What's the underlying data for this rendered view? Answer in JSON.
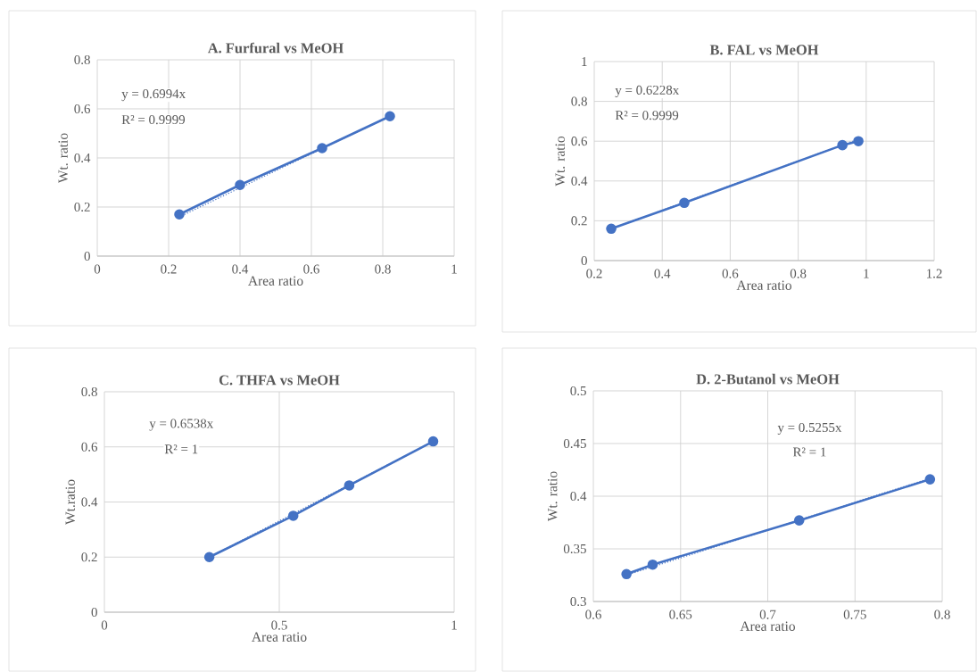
{
  "chart_data": [
    {
      "type": "line",
      "title": "A. Furfural vs MeOH",
      "xlabel": "Area ratio",
      "ylabel": "Wt. ratio",
      "annotations": [
        "y = 0.6994x",
        "R² = 0.9999"
      ],
      "xlim": [
        0,
        1
      ],
      "ylim": [
        0,
        0.8
      ],
      "xticks": [
        0,
        0.2,
        0.4,
        0.6,
        0.8,
        1
      ],
      "yticks": [
        0,
        0.2,
        0.4,
        0.6,
        0.8
      ],
      "grid": true,
      "marker": "circle",
      "series": [
        {
          "color": "#4472c4",
          "x": [
            0.23,
            0.4,
            0.63,
            0.82
          ],
          "values": [
            0.17,
            0.29,
            0.44,
            0.57
          ]
        },
        {
          "color": "#4472c4",
          "x": [
            0.23,
            0.82
          ],
          "values": [
            0.16,
            0.57
          ],
          "line_style": "dotted",
          "marker": "none"
        }
      ]
    },
    {
      "type": "line",
      "title": "B. FAL vs MeOH",
      "xlabel": "Area ratio",
      "ylabel": "Wt. ratio",
      "annotations": [
        "y = 0.6228x",
        "R² = 0.9999"
      ],
      "xlim": [
        0.2,
        1.2
      ],
      "ylim": [
        0,
        1
      ],
      "xticks": [
        0.2,
        0.4,
        0.6,
        0.8,
        1,
        1.2
      ],
      "yticks": [
        0,
        0.2,
        0.4,
        0.6,
        0.8,
        1
      ],
      "grid": true,
      "marker": "circle",
      "series": [
        {
          "color": "#4472c4",
          "x": [
            0.25,
            0.465,
            0.93,
            0.977
          ],
          "values": [
            0.16,
            0.29,
            0.58,
            0.6
          ]
        },
        {
          "color": "#4472c4",
          "x": [
            0.25,
            0.977
          ],
          "values": [
            0.16,
            0.61
          ],
          "line_style": "dotted",
          "marker": "none"
        }
      ]
    },
    {
      "type": "line",
      "title": "C. THFA vs MeOH",
      "xlabel": "Area ratio",
      "ylabel": "Wt.ratio",
      "annotations": [
        "y = 0.6538x",
        "R² = 1"
      ],
      "xlim": [
        0,
        1
      ],
      "ylim": [
        0,
        0.8
      ],
      "xticks": [
        0,
        0.5,
        1
      ],
      "yticks": [
        0,
        0.2,
        0.4,
        0.6,
        0.8
      ],
      "grid": true,
      "marker": "circle",
      "series": [
        {
          "color": "#4472c4",
          "x": [
            0.3,
            0.54,
            0.7,
            0.94
          ],
          "values": [
            0.2,
            0.35,
            0.46,
            0.62
          ]
        },
        {
          "color": "#4472c4",
          "x": [
            0.3,
            0.94
          ],
          "values": [
            0.2,
            0.62
          ],
          "line_style": "dotted",
          "marker": "none"
        }
      ]
    },
    {
      "type": "line",
      "title": "D. 2-Butanol vs MeOH",
      "xlabel": "Area ratio",
      "ylabel": "Wt. ratio",
      "annotations": [
        "y = 0.5255x",
        "R² = 1"
      ],
      "xlim": [
        0.6,
        0.8
      ],
      "ylim": [
        0.3,
        0.5
      ],
      "xticks": [
        0.6,
        0.65,
        0.7,
        0.75,
        0.8
      ],
      "yticks": [
        0.3,
        0.35,
        0.4,
        0.45,
        0.5
      ],
      "grid": true,
      "marker": "circle",
      "series": [
        {
          "color": "#4472c4",
          "x": [
            0.619,
            0.634,
            0.718,
            0.793
          ],
          "values": [
            0.326,
            0.335,
            0.377,
            0.416
          ]
        },
        {
          "color": "#4472c4",
          "x": [
            0.619,
            0.793
          ],
          "values": [
            0.325,
            0.417
          ],
          "line_style": "dotted",
          "marker": "none"
        }
      ]
    }
  ]
}
